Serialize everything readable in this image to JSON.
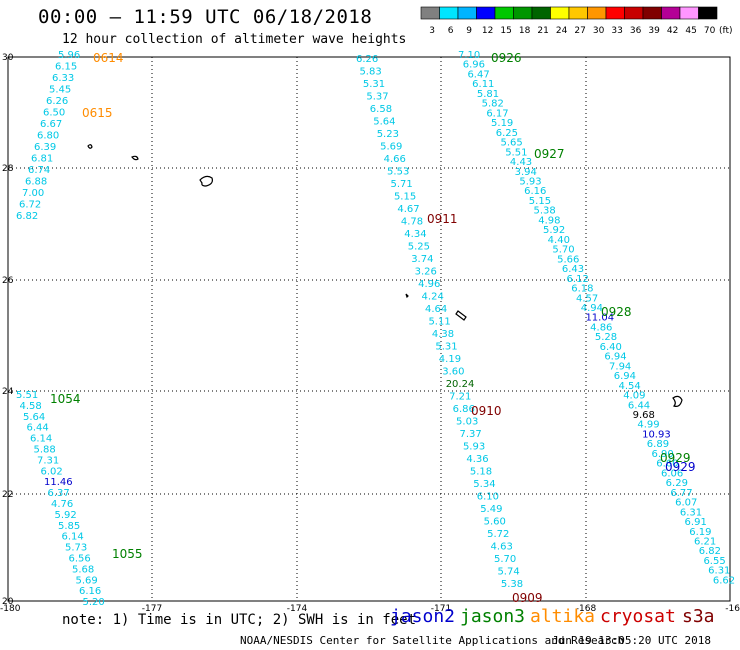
{
  "header": {
    "title": "00:00 – 11:59 UTC 06/18/2018",
    "subtitle": "12 hour collection of altimeter wave heights"
  },
  "colorbar": {
    "labels": [
      "3",
      "6",
      "9",
      "12",
      "15",
      "18",
      "21",
      "24",
      "27",
      "30",
      "33",
      "36",
      "39",
      "42",
      "45",
      "70"
    ],
    "unit": "(ft)",
    "colors": [
      "#808080",
      "#00e5ff",
      "#00b4ff",
      "#0000ff",
      "#00c800",
      "#009600",
      "#006400",
      "#ffff00",
      "#ffc800",
      "#ff9600",
      "#ff0000",
      "#c80000",
      "#800000",
      "#b40096",
      "#ff96ff",
      "#000000"
    ]
  },
  "axes": {
    "x_ticks": [
      "-180",
      "-177",
      "-174",
      "-171",
      "-168",
      "-16"
    ],
    "y_ticks": [
      "30",
      "28",
      "26",
      "24",
      "22",
      "20"
    ]
  },
  "colors": {
    "wave_cyan": "#00c8e6",
    "jason2": "#0000cc",
    "jason3": "#008000",
    "altika": "#ff8c00",
    "cryosat": "#cc0000",
    "s3a": "#800000",
    "dark_red": "#800000"
  },
  "tracks": [
    {
      "id": "t1",
      "values": [
        "5.96",
        "6.15",
        "6.33",
        "5.45",
        "6.26",
        "6.50",
        "6.67",
        "6.80",
        "6.39",
        "6.81",
        "6.74",
        "6.88",
        "7.00",
        "6.72",
        "6.82"
      ]
    },
    {
      "id": "t2",
      "values": [
        "5.51",
        "4.58",
        "5.64",
        "6.44",
        "6.14",
        "5.88",
        "7.31",
        "6.02",
        "11.46",
        "6.37",
        "4.76",
        "5.92",
        "5.85",
        "6.14",
        "5.73",
        "6.56",
        "5.68",
        "5.69",
        "6.16",
        "5.20"
      ]
    },
    {
      "id": "t3",
      "values": [
        "6.26",
        "5.83",
        "5.31",
        "5.37",
        "6.58",
        "5.64",
        "5.23",
        "5.69",
        "4.66",
        "5.53",
        "5.71",
        "5.15",
        "4.67",
        "4.78",
        "4.34",
        "5.25",
        "3.74",
        "3.26",
        "4.96",
        "4.24",
        "4.64",
        "5.11",
        "4.38",
        "5.31",
        "4.19",
        "3.60",
        "20.24",
        "7.21",
        "6.86",
        "5.03",
        "7.37",
        "5.93",
        "4.36",
        "5.18",
        "5.34",
        "6.10",
        "5.49",
        "5.60",
        "5.72",
        "4.63",
        "5.70",
        "5.74",
        "5.38"
      ]
    },
    {
      "id": "t4",
      "values": [
        "7.10",
        "6.96",
        "6.47",
        "6.11",
        "5.81",
        "5.82",
        "6.17",
        "5.19",
        "6.25",
        "5.65",
        "5.51",
        "4.43",
        "3.94",
        "5.93",
        "6.16",
        "5.15",
        "5.38",
        "4.98",
        "5.92",
        "4.40",
        "5.70",
        "5.66",
        "6.43",
        "6.12",
        "6.18",
        "4.57",
        "4.94",
        "11.04",
        "4.86",
        "5.28",
        "6.40",
        "6.94",
        "7.94",
        "6.94",
        "4.54",
        "4.09",
        "6.44",
        "9.68",
        "4.99",
        "10.93",
        "6.89",
        "6.90",
        "6.60",
        "6.06",
        "6.29",
        "6.77",
        "6.07",
        "6.31",
        "6.91",
        "6.19",
        "6.21",
        "6.82",
        "6.55",
        "6.31",
        "6.62"
      ]
    }
  ],
  "passes": [
    {
      "label": "0614",
      "sat": "altika"
    },
    {
      "label": "0615",
      "sat": "altika"
    },
    {
      "label": "0926",
      "sat": "jason3"
    },
    {
      "label": "0927",
      "sat": "jason3"
    },
    {
      "label": "0911",
      "sat": "s3a"
    },
    {
      "label": "0928",
      "sat": "jason3"
    },
    {
      "label": "1054",
      "sat": "jason3"
    },
    {
      "label": "0910",
      "sat": "s3a"
    },
    {
      "label": "0929",
      "sat": "jason3"
    },
    {
      "label": "0929",
      "sat": "jason2"
    },
    {
      "label": "1055",
      "sat": "jason3"
    },
    {
      "label": "0909",
      "sat": "s3a"
    }
  ],
  "legend": {
    "note": "note:  1) Time is in UTC;  2) SWH is in feet",
    "jason2": "jason2",
    "jason3": "jason3",
    "altika": "altika",
    "cryosat": "cryosat",
    "s3a": "s3a"
  },
  "footer": {
    "credit": "NOAA/NESDIS Center for Satellite Applications and Research",
    "timestamp": "Jun 19 13:05:20 UTC 2018"
  }
}
